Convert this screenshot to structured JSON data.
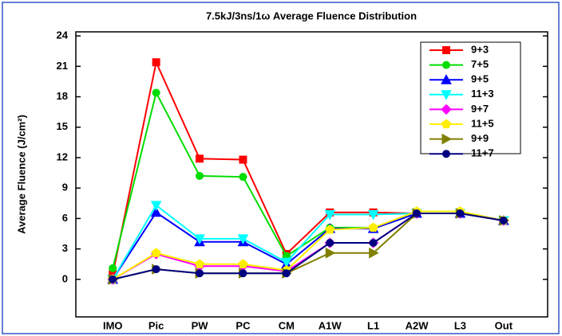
{
  "chart_data": {
    "type": "line",
    "title": "7.5kJ/3ns/1ω  Average Fluence Distribution",
    "y_label": "Average Fluence (J/cm²)",
    "categories": [
      "IMO",
      "Pic",
      "PW",
      "PC",
      "CM",
      "A1W",
      "L1",
      "A2W",
      "L3",
      "Out"
    ],
    "ylim": [
      -3.7,
      24.4
    ],
    "yticks": [
      0,
      3,
      6,
      9,
      12,
      15,
      18,
      21,
      24
    ],
    "legend": "upper right",
    "series": [
      {
        "name": "9+3",
        "color": "#ff0000",
        "marker": "square",
        "values": [
          0.5,
          21.4,
          11.9,
          11.8,
          2.5,
          6.6,
          6.6,
          6.5,
          6.5,
          5.8
        ]
      },
      {
        "name": "7+5",
        "color": "#00dd00",
        "marker": "circle",
        "values": [
          1.1,
          18.4,
          10.2,
          10.1,
          2.3,
          5.1,
          5.1,
          6.5,
          6.5,
          5.8
        ]
      },
      {
        "name": "9+5",
        "color": "#0000ff",
        "marker": "triangle-up",
        "values": [
          0,
          6.6,
          3.7,
          3.7,
          1.5,
          5.0,
          5.0,
          6.5,
          6.5,
          5.8
        ]
      },
      {
        "name": "11+3",
        "color": "#00ffff",
        "marker": "triangle-down",
        "values": [
          0,
          7.3,
          4.0,
          4.0,
          1.7,
          6.4,
          6.4,
          6.5,
          6.5,
          5.8
        ]
      },
      {
        "name": "9+7",
        "color": "#ff00ff",
        "marker": "diamond",
        "values": [
          0,
          2.5,
          1.3,
          1.3,
          0.8,
          3.6,
          3.6,
          6.5,
          6.5,
          5.8
        ]
      },
      {
        "name": "11+5",
        "color": "#ffee00",
        "marker": "pentagon",
        "values": [
          0,
          2.6,
          1.5,
          1.5,
          0.9,
          4.9,
          5.1,
          6.7,
          6.7,
          5.8
        ]
      },
      {
        "name": "9+9",
        "color": "#808000",
        "marker": "triangle-right",
        "values": [
          0,
          1.0,
          0.6,
          0.6,
          0.6,
          2.6,
          2.6,
          6.5,
          6.5,
          5.8
        ]
      },
      {
        "name": "11+7",
        "color": "#000080",
        "marker": "circle",
        "values": [
          0,
          1.0,
          0.6,
          0.6,
          0.6,
          3.6,
          3.6,
          6.5,
          6.5,
          5.8
        ]
      }
    ]
  }
}
